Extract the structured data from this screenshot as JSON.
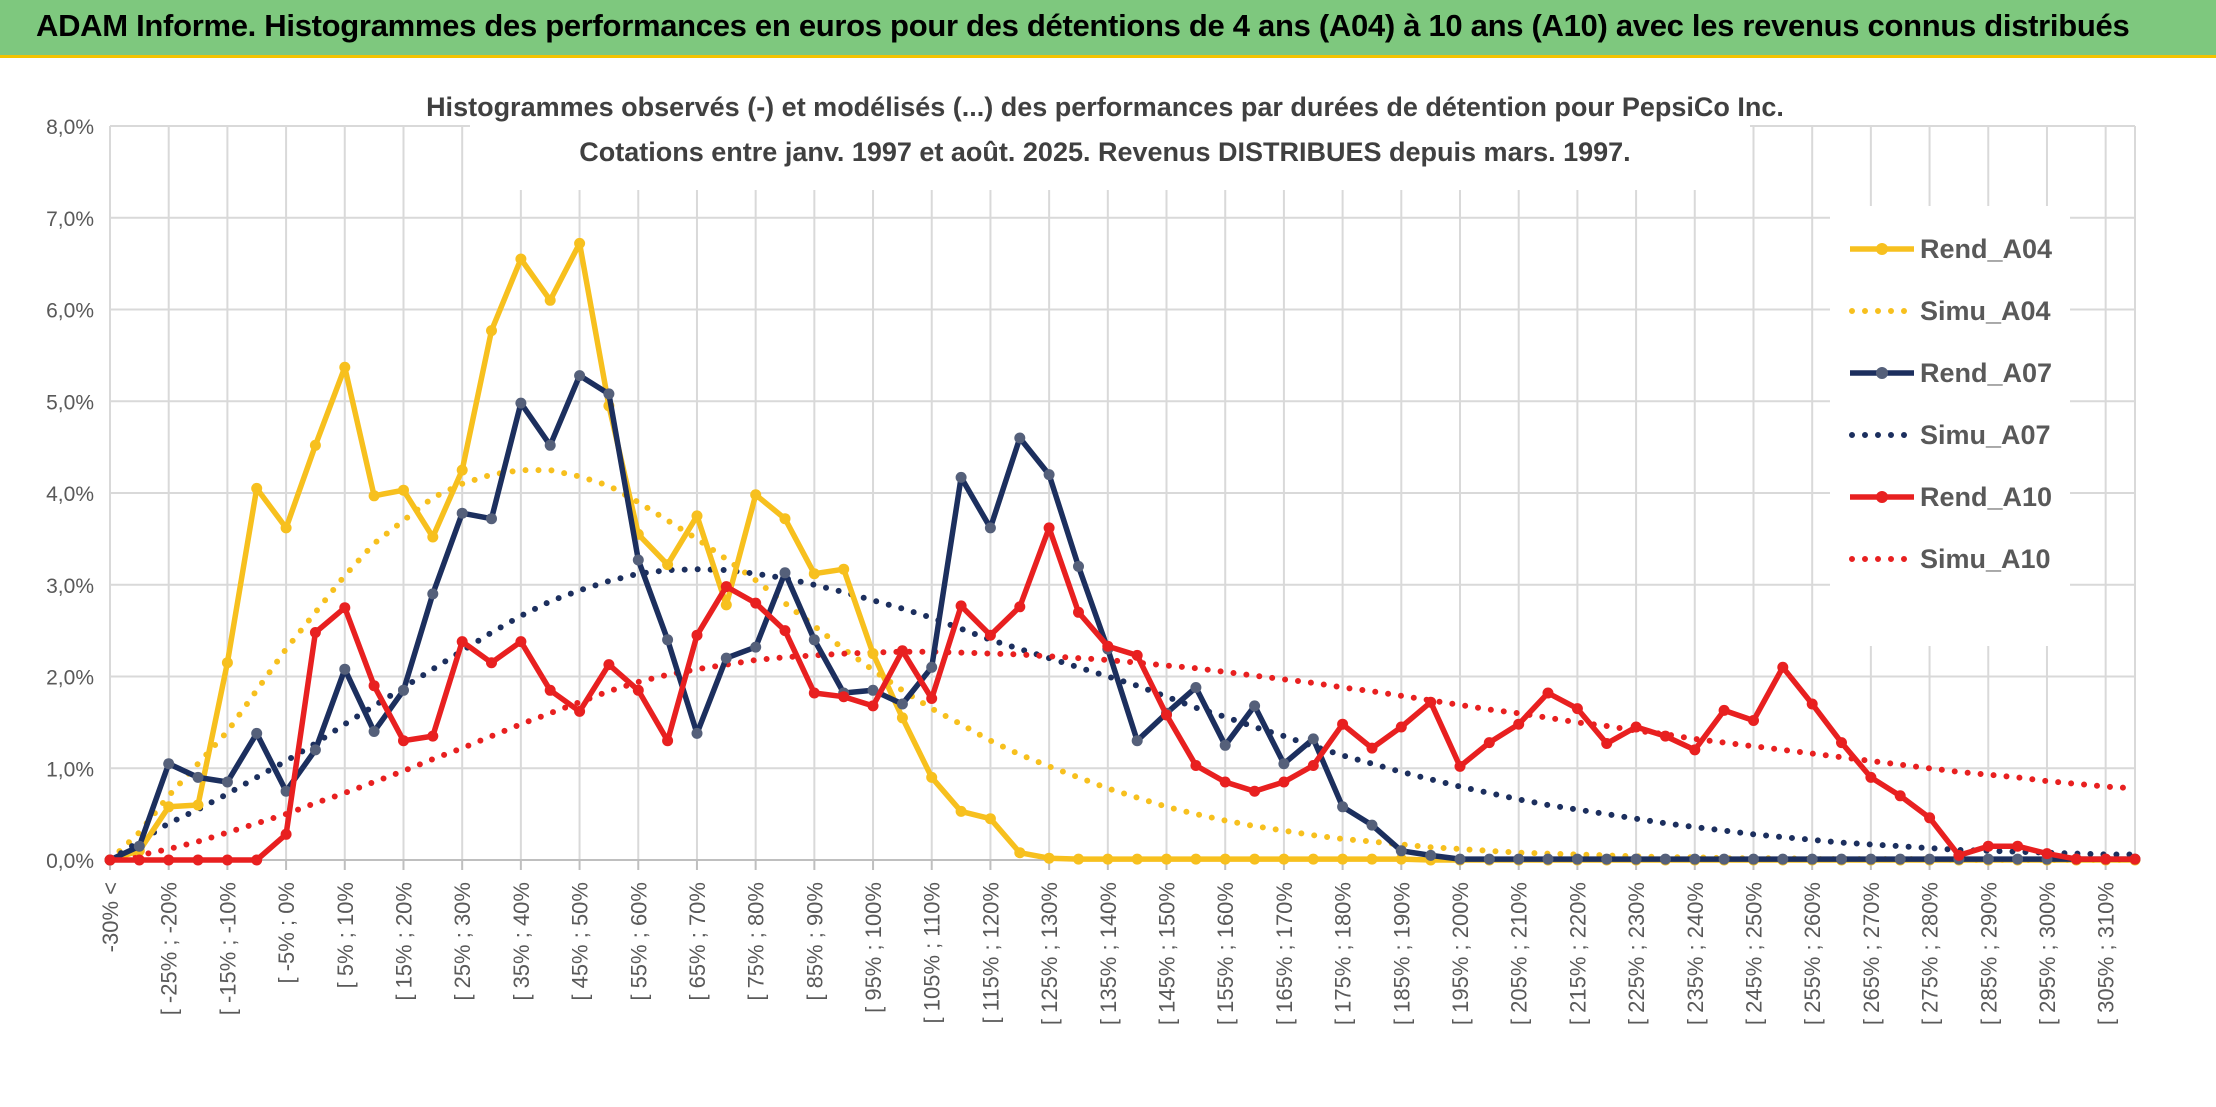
{
  "banner": {
    "title": "ADAM Informe. Histogrammes des performances en euros pour des détentions de 4 ans (A04) à 10 ans (A10) avec les revenus connus distribués"
  },
  "colors": {
    "a04": "#f7c01e",
    "a07": "#1c2f5e",
    "a10": "#e82020",
    "banner": "#7ec87e",
    "accent": "#f3c300"
  },
  "chart_data": {
    "type": "line",
    "title": "Histogrammes observés (-) et modélisés (...) des performances par durées de détention pour PepsiCo Inc.",
    "subtitle": "Cotations entre janv. 1997 et août. 2025. Revenus DISTRIBUES depuis mars. 1997.",
    "ylim": [
      0,
      8
    ],
    "yticks": [
      "0,0%",
      "1,0%",
      "2,0%",
      "3,0%",
      "4,0%",
      "5,0%",
      "6,0%",
      "7,0%",
      "8,0%"
    ],
    "xtick_labels": [
      "-30% <",
      "[ -25% ; -20%",
      "[ -15% ; -10%",
      "[ -5% ; 0%",
      "[ 5% ; 10%",
      "[ 15% ; 20%",
      "[ 25% ; 30%",
      "[ 35% ; 40%",
      "[ 45% ; 50%",
      "[ 55% ; 60%",
      "[ 65% ; 70%",
      "[ 75% ; 80%",
      "[ 85% ; 90%",
      "[ 95% ; 100%",
      "[ 105% ; 110%",
      "[ 115% ; 120%",
      "[ 125% ; 130%",
      "[ 135% ; 140%",
      "[ 145% ; 150%",
      "[ 155% ; 160%",
      "[ 165% ; 170%",
      "[ 175% ; 180%",
      "[ 185% ; 190%",
      "[ 195% ; 200%",
      "[ 205% ; 210%",
      "[ 215% ; 220%",
      "[ 225% ; 230%",
      "[ 235% ; 240%",
      "[ 245% ; 250%",
      "[ 255% ; 260%",
      "[ 265% ; 270%",
      "[ 275% ; 280%",
      "[ 285% ; 290%",
      "[ 295% ; 300%",
      "[ 305% ; 310%"
    ],
    "legend_position": "right",
    "series": [
      {
        "name": "Rend_A04",
        "style": "solid",
        "color": "#f7c01e",
        "values": [
          0,
          0.1,
          0.58,
          0.6,
          2.15,
          4.05,
          3.62,
          4.52,
          5.37,
          3.97,
          4.03,
          3.52,
          4.25,
          5.77,
          6.55,
          6.1,
          6.72,
          4.95,
          3.55,
          3.22,
          3.75,
          2.78,
          3.98,
          3.72,
          3.12,
          3.17,
          2.25,
          1.55,
          0.9,
          0.53,
          0.45,
          0.08,
          0.02,
          0.01,
          0.01,
          0.01,
          0.01,
          0.01,
          0.01,
          0.01,
          0.01,
          0.01,
          0.01,
          0.01,
          0.01,
          0,
          0,
          0,
          0,
          0,
          0,
          0,
          0,
          0,
          0,
          0,
          0,
          0,
          0,
          0,
          0,
          0,
          0,
          0,
          0,
          0,
          0,
          0,
          0,
          0
        ]
      },
      {
        "name": "Simu_A04",
        "style": "dotted",
        "color": "#f7c01e",
        "values": [
          0,
          0.3,
          0.7,
          1.05,
          1.4,
          1.85,
          2.3,
          2.7,
          3.1,
          3.45,
          3.7,
          3.95,
          4.1,
          4.2,
          4.25,
          4.25,
          4.18,
          4.08,
          3.9,
          3.7,
          3.5,
          3.28,
          3.05,
          2.8,
          2.55,
          2.3,
          2.07,
          1.85,
          1.65,
          1.48,
          1.3,
          1.15,
          1.02,
          0.9,
          0.78,
          0.68,
          0.58,
          0.5,
          0.43,
          0.37,
          0.32,
          0.27,
          0.23,
          0.2,
          0.17,
          0.14,
          0.12,
          0.1,
          0.08,
          0.07,
          0.06,
          0.05,
          0.04,
          0.03,
          0.03,
          0.02,
          0.02,
          0.02,
          0.01,
          0.01,
          0.01,
          0.01,
          0.01,
          0,
          0,
          0,
          0,
          0,
          0,
          0
        ]
      },
      {
        "name": "Rend_A07",
        "style": "solid",
        "color": "#1c2f5e",
        "values": [
          0,
          0.15,
          1.05,
          0.9,
          0.85,
          1.38,
          0.75,
          1.2,
          2.08,
          1.4,
          1.85,
          2.9,
          3.78,
          3.72,
          4.98,
          4.52,
          5.28,
          5.08,
          3.27,
          2.4,
          1.38,
          2.2,
          2.32,
          3.13,
          2.4,
          1.82,
          1.85,
          1.7,
          2.1,
          4.17,
          3.62,
          4.6,
          4.2,
          3.2,
          2.3,
          1.3,
          1.6,
          1.88,
          1.25,
          1.68,
          1.05,
          1.32,
          0.58,
          0.38,
          0.1,
          0.05,
          0.01,
          0.01,
          0.01,
          0.01,
          0.01,
          0.01,
          0.01,
          0.01,
          0.01,
          0.01,
          0.01,
          0.01,
          0.01,
          0.01,
          0.01,
          0.01,
          0.01,
          0.01,
          0.01,
          0.01,
          0.01,
          0.01,
          0.01,
          0.01
        ]
      },
      {
        "name": "Simu_A07",
        "style": "dotted",
        "color": "#1c2f5e",
        "values": [
          0,
          0.2,
          0.4,
          0.55,
          0.72,
          0.9,
          1.08,
          1.27,
          1.48,
          1.68,
          1.88,
          2.08,
          2.28,
          2.48,
          2.66,
          2.82,
          2.94,
          3.04,
          3.12,
          3.16,
          3.17,
          3.16,
          3.12,
          3.07,
          3.0,
          2.92,
          2.83,
          2.74,
          2.64,
          2.52,
          2.4,
          2.3,
          2.2,
          2.1,
          2.0,
          1.9,
          1.78,
          1.66,
          1.56,
          1.45,
          1.35,
          1.24,
          1.14,
          1.05,
          0.96,
          0.88,
          0.8,
          0.73,
          0.66,
          0.6,
          0.55,
          0.5,
          0.45,
          0.4,
          0.36,
          0.32,
          0.28,
          0.25,
          0.22,
          0.19,
          0.17,
          0.15,
          0.13,
          0.11,
          0.1,
          0.09,
          0.08,
          0.07,
          0.06,
          0.06
        ]
      },
      {
        "name": "Rend_A10",
        "style": "solid",
        "color": "#e82020",
        "values": [
          0,
          0,
          0,
          0,
          0,
          0,
          0.28,
          2.48,
          2.75,
          1.9,
          1.3,
          1.35,
          2.38,
          2.15,
          2.38,
          1.85,
          1.62,
          2.13,
          1.85,
          1.3,
          2.45,
          2.98,
          2.8,
          2.5,
          1.82,
          1.78,
          1.68,
          2.28,
          1.76,
          2.77,
          2.45,
          2.76,
          3.62,
          2.7,
          2.33,
          2.23,
          1.58,
          1.03,
          0.85,
          0.75,
          0.85,
          1.03,
          1.48,
          1.22,
          1.45,
          1.72,
          1.02,
          1.28,
          1.48,
          1.82,
          1.65,
          1.27,
          1.45,
          1.35,
          1.2,
          1.63,
          1.52,
          2.1,
          1.7,
          1.28,
          0.9,
          0.7,
          0.46,
          0.05,
          0.15,
          0.15,
          0.07,
          0.01,
          0.01,
          0.01
        ]
      },
      {
        "name": "Simu_A10",
        "style": "dotted",
        "color": "#e82020",
        "values": [
          0,
          0.05,
          0.12,
          0.2,
          0.3,
          0.4,
          0.5,
          0.62,
          0.73,
          0.85,
          0.97,
          1.1,
          1.22,
          1.35,
          1.48,
          1.6,
          1.72,
          1.84,
          1.94,
          2.02,
          2.08,
          2.13,
          2.18,
          2.21,
          2.23,
          2.25,
          2.26,
          2.27,
          2.27,
          2.26,
          2.25,
          2.24,
          2.22,
          2.2,
          2.18,
          2.15,
          2.12,
          2.09,
          2.05,
          2.01,
          1.97,
          1.93,
          1.88,
          1.84,
          1.79,
          1.74,
          1.69,
          1.64,
          1.6,
          1.55,
          1.5,
          1.46,
          1.41,
          1.37,
          1.32,
          1.28,
          1.24,
          1.2,
          1.16,
          1.12,
          1.08,
          1.04,
          1.0,
          0.96,
          0.93,
          0.9,
          0.86,
          0.83,
          0.8,
          0.78
        ]
      }
    ]
  }
}
